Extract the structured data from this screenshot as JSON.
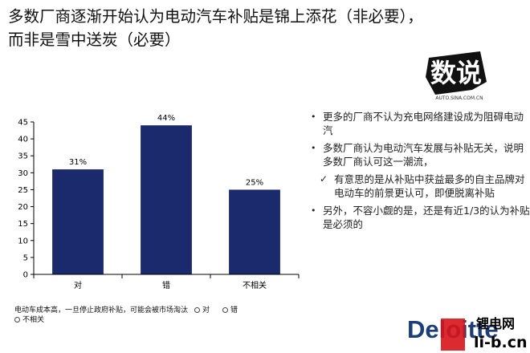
{
  "title": {
    "line1": "多数厂商逐渐开始认为电动汽车补贴是锦上添花（非必要），",
    "line2": "而非是雪中送炭（必要）"
  },
  "logo": {
    "main_text": "数说",
    "sub_text": "AUTO.SINA.COM.CN"
  },
  "chart_data": {
    "type": "bar",
    "categories": [
      "对",
      "错",
      "不相关"
    ],
    "values": [
      31,
      44,
      25
    ],
    "data_labels": [
      "31%",
      "44%",
      "25%"
    ],
    "ylim": [
      0,
      45
    ],
    "yticks": [
      0,
      5,
      10,
      15,
      20,
      25,
      30,
      35,
      40,
      45
    ],
    "bar_color": "#1a2a6c",
    "grid": false
  },
  "legend": {
    "question": "电动车成本高，一旦停止政府补贴，可能会被市场淘汰",
    "items": [
      "对",
      "错",
      "不相关"
    ]
  },
  "bullets": [
    {
      "marker": "•",
      "text": "更多的厂商不认为充电网络建设成为阻碍电动汽",
      "level": 1
    },
    {
      "marker": "•",
      "text": "多数厂商认为电动汽车发展与补贴无关，说明多数厂商认可这一潮流，",
      "level": 1
    },
    {
      "marker": "✓",
      "text": "有意思的是从补贴中获益最多的自主品牌对电动车的前景更认可，即便脱离补贴",
      "level": 2
    },
    {
      "marker": "•",
      "text": "另外，不容小觑的是，还是有近1/3的认为补贴是必须的",
      "level": 1
    }
  ],
  "watermark": {
    "brand": "Deloitte",
    "site_cn": "锂电网",
    "site_url": "li-b.cn"
  }
}
